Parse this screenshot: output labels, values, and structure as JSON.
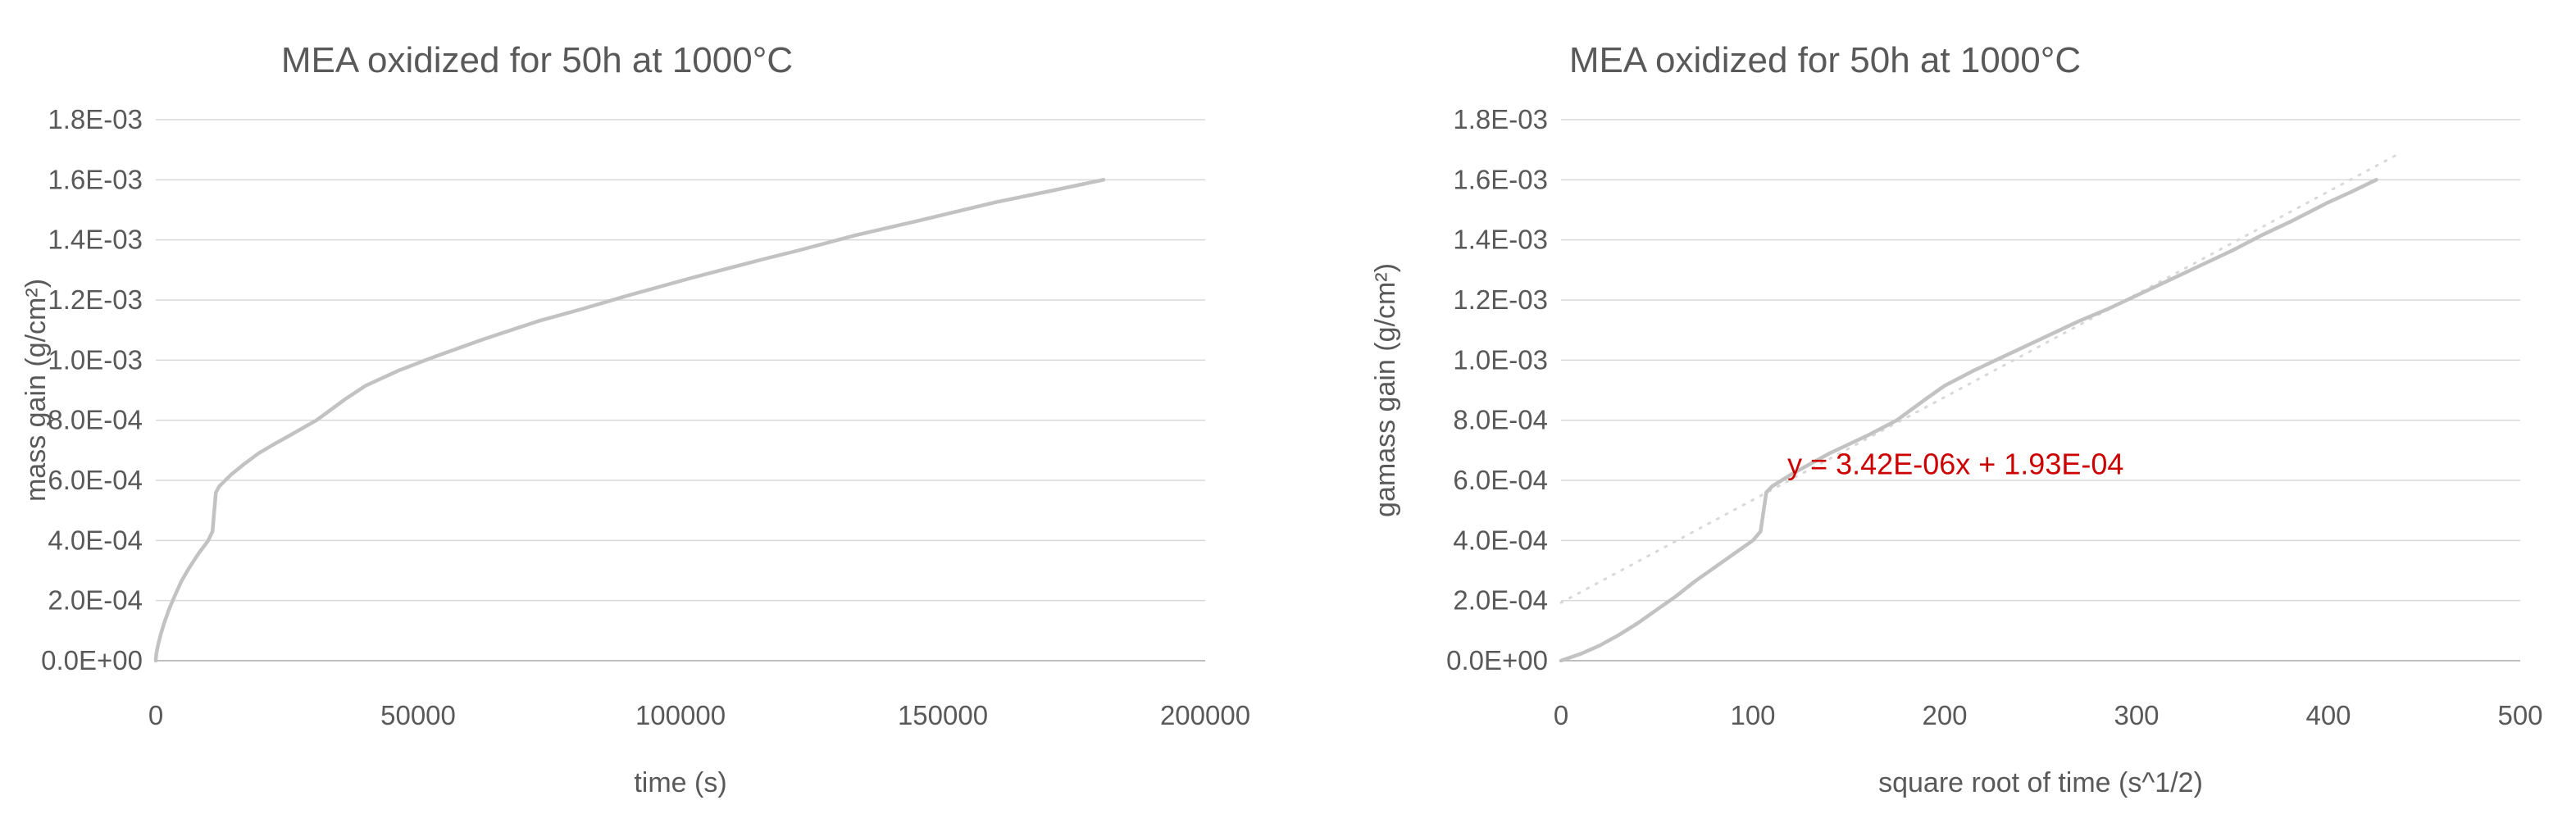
{
  "style": {
    "background": "#ffffff",
    "gridline_color": "#d9d9d9",
    "axis_color": "#bfbfbf",
    "text_color": "#595959",
    "series_color": "#c2c2c2",
    "annotation_color": "#cc0000"
  },
  "chart_data": [
    {
      "type": "line",
      "title": "MEA oxidized for 50h at 1000°C",
      "xlabel": "time (s)",
      "ylabel": "mass gain (g/cm²)",
      "xlim": [
        0,
        200000
      ],
      "ylim": [
        0,
        0.0018
      ],
      "grid": "horizontal",
      "legend": "none",
      "x_ticks": [
        {
          "v": 0,
          "label": "0"
        },
        {
          "v": 50000,
          "label": "50000"
        },
        {
          "v": 100000,
          "label": "100000"
        },
        {
          "v": 150000,
          "label": "150000"
        },
        {
          "v": 200000,
          "label": "200000"
        }
      ],
      "y_ticks": [
        {
          "v": 0.0,
          "label": "0.0E+00"
        },
        {
          "v": 0.0002,
          "label": "2.0E-04"
        },
        {
          "v": 0.0004,
          "label": "4.0E-04"
        },
        {
          "v": 0.0006,
          "label": "6.0E-04"
        },
        {
          "v": 0.0008,
          "label": "8.0E-04"
        },
        {
          "v": 0.001,
          "label": "1.0E-03"
        },
        {
          "v": 0.0012,
          "label": "1.2E-03"
        },
        {
          "v": 0.0014,
          "label": "1.4E-03"
        },
        {
          "v": 0.0016,
          "label": "1.6E-03"
        },
        {
          "v": 0.0018,
          "label": "1.8E-03"
        }
      ],
      "series": [
        {
          "name": "mass-gain-vs-time",
          "color": "#c2c2c2",
          "width": 4.5,
          "points": [
            [
              0,
              0
            ],
            [
              100,
              2.2e-05
            ],
            [
              400,
              5e-05
            ],
            [
              900,
              8.5e-05
            ],
            [
              1600,
              0.000125
            ],
            [
              2500,
              0.00017
            ],
            [
              3600,
              0.000215
            ],
            [
              4900,
              0.000265
            ],
            [
              6400,
              0.00031
            ],
            [
              8100,
              0.000355
            ],
            [
              10000,
              0.0004
            ],
            [
              10816,
              0.00043
            ],
            [
              11449,
              0.00056
            ],
            [
              12100,
              0.00058
            ],
            [
              14400,
              0.00062
            ],
            [
              16900,
              0.000655
            ],
            [
              19600,
              0.00069
            ],
            [
              22500,
              0.00072
            ],
            [
              25600,
              0.00075
            ],
            [
              30625,
              0.0008
            ],
            [
              36100,
              0.00087
            ],
            [
              40000,
              0.000915
            ],
            [
              46225,
              0.000965
            ],
            [
              52900,
              0.00101
            ],
            [
              62500,
              0.00107
            ],
            [
              72900,
              0.00113
            ],
            [
              81225,
              0.00117
            ],
            [
              90000,
              0.001215
            ],
            [
              102400,
              0.001275
            ],
            [
              115600,
              0.001335
            ],
            [
              122500,
              0.001365
            ],
            [
              133225,
              0.001415
            ],
            [
              144400,
              0.00146
            ],
            [
              160000,
              0.001525
            ],
            [
              169744,
              0.00156
            ],
            [
              180625,
              0.0016
            ]
          ]
        }
      ]
    },
    {
      "type": "line",
      "title": "MEA oxidized for 50h at 1000°C",
      "xlabel": "square root of time (s^1/2)",
      "ylabel": "gamass gain (g/cm²)",
      "xlim": [
        0,
        500
      ],
      "ylim": [
        0,
        0.0018
      ],
      "grid": "horizontal",
      "legend": "none",
      "x_ticks": [
        {
          "v": 0,
          "label": "0"
        },
        {
          "v": 100,
          "label": "100"
        },
        {
          "v": 200,
          "label": "200"
        },
        {
          "v": 300,
          "label": "300"
        },
        {
          "v": 400,
          "label": "400"
        },
        {
          "v": 500,
          "label": "500"
        }
      ],
      "y_ticks": [
        {
          "v": 0.0,
          "label": "0.0E+00"
        },
        {
          "v": 0.0002,
          "label": "2.0E-04"
        },
        {
          "v": 0.0004,
          "label": "4.0E-04"
        },
        {
          "v": 0.0006,
          "label": "6.0E-04"
        },
        {
          "v": 0.0008,
          "label": "8.0E-04"
        },
        {
          "v": 0.001,
          "label": "1.0E-03"
        },
        {
          "v": 0.0012,
          "label": "1.2E-03"
        },
        {
          "v": 0.0014,
          "label": "1.4E-03"
        },
        {
          "v": 0.0016,
          "label": "1.6E-03"
        },
        {
          "v": 0.0018,
          "label": "1.8E-03"
        }
      ],
      "trendline": {
        "equation": "y = 3.42E-06x + 1.93E-04",
        "slope": 3.42e-06,
        "intercept": 0.000193,
        "x_range": [
          0,
          437
        ],
        "color": "#d8d8d8",
        "style": "dotted",
        "label_color": "#cc0000",
        "label_x": 118,
        "label_y": 0.00062
      },
      "series": [
        {
          "name": "mass-gain-vs-sqrt-time",
          "color": "#c2c2c2",
          "width": 4.5,
          "points": [
            [
              0,
              0
            ],
            [
              10,
              2.2e-05
            ],
            [
              20,
              5e-05
            ],
            [
              30,
              8.5e-05
            ],
            [
              40,
              0.000125
            ],
            [
              50,
              0.00017
            ],
            [
              60,
              0.000215
            ],
            [
              70,
              0.000265
            ],
            [
              80,
              0.00031
            ],
            [
              90,
              0.000355
            ],
            [
              100,
              0.0004
            ],
            [
              104,
              0.00043
            ],
            [
              107,
              0.00056
            ],
            [
              110,
              0.00058
            ],
            [
              120,
              0.00062
            ],
            [
              130,
              0.000655
            ],
            [
              140,
              0.00069
            ],
            [
              150,
              0.00072
            ],
            [
              160,
              0.00075
            ],
            [
              175,
              0.0008
            ],
            [
              190,
              0.00087
            ],
            [
              200,
              0.000915
            ],
            [
              215,
              0.000965
            ],
            [
              230,
              0.00101
            ],
            [
              250,
              0.00107
            ],
            [
              270,
              0.00113
            ],
            [
              285,
              0.00117
            ],
            [
              300,
              0.001215
            ],
            [
              320,
              0.001275
            ],
            [
              340,
              0.001335
            ],
            [
              350,
              0.001365
            ],
            [
              365,
              0.001415
            ],
            [
              380,
              0.00146
            ],
            [
              400,
              0.001525
            ],
            [
              412,
              0.00156
            ],
            [
              425,
              0.0016
            ]
          ]
        }
      ]
    }
  ]
}
